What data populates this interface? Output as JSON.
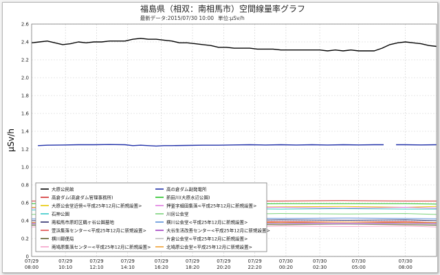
{
  "chart_data": {
    "type": "line",
    "title": "福島県（相双：南相馬市）空間線量率グラフ",
    "subtitle_latest": "最新データ:2015/07/30 10:00",
    "subtitle_unit": "単位:μSv/h",
    "ylabel": "μSv/h",
    "xlabel": "",
    "ylim": [
      0,
      2.6
    ],
    "y_ticks": [
      0,
      0.2,
      0.4,
      0.6,
      0.8,
      1.0,
      1.2,
      1.4,
      1.6,
      1.8,
      2.0,
      2.2,
      2.4,
      2.6
    ],
    "y_tick_labels": [
      "0",
      "0.2",
      "0.4",
      "0.6",
      "0.8",
      "1.0",
      "1.2",
      "1.4",
      "1.6",
      "1.8",
      "2.0",
      "2.2",
      "2.4",
      "2.6"
    ],
    "x_range": [
      0,
      26
    ],
    "x_ticks": [
      {
        "x": 0,
        "date": "07/29",
        "time": "08:00"
      },
      {
        "x": 2.17,
        "date": "07/29",
        "time": "10:10"
      },
      {
        "x": 4.17,
        "date": "07/29",
        "time": "12:10"
      },
      {
        "x": 6.17,
        "date": "07/29",
        "time": "14:10"
      },
      {
        "x": 8.33,
        "date": "07/29",
        "time": "16:20"
      },
      {
        "x": 10.33,
        "date": "07/29",
        "time": "18:20"
      },
      {
        "x": 12.33,
        "date": "07/29",
        "time": "20:20"
      },
      {
        "x": 14.33,
        "date": "07/29",
        "time": "22:20"
      },
      {
        "x": 16.33,
        "date": "07/30",
        "time": "00:20"
      },
      {
        "x": 18.5,
        "date": "07/30",
        "time": "02:30"
      },
      {
        "x": 21.0,
        "date": "07/30",
        "time": "05:00"
      },
      {
        "x": 24.0,
        "date": "07/30",
        "time": "08:00"
      }
    ],
    "grid": true,
    "legend_placement": "bottom-left",
    "series": [
      {
        "name": "大原公民館",
        "color": "#000000",
        "width": 1.4,
        "points": [
          [
            0,
            2.39
          ],
          [
            0.5,
            2.4
          ],
          [
            1,
            2.41
          ],
          [
            1.5,
            2.39
          ],
          [
            2,
            2.37
          ],
          [
            2.5,
            2.38
          ],
          [
            3,
            2.4
          ],
          [
            3.5,
            2.39
          ],
          [
            4,
            2.4
          ],
          [
            4.5,
            2.4
          ],
          [
            5,
            2.41
          ],
          [
            5.5,
            2.41
          ],
          [
            6,
            2.41
          ],
          [
            6.5,
            2.43
          ],
          [
            7,
            2.44
          ],
          [
            7.5,
            2.43
          ],
          [
            8,
            2.43
          ],
          [
            8.5,
            2.42
          ],
          [
            9,
            2.41
          ],
          [
            9.5,
            2.39
          ],
          [
            10,
            2.39
          ],
          [
            10.5,
            2.38
          ],
          [
            11,
            2.37
          ],
          [
            11.5,
            2.36
          ],
          [
            12,
            2.34
          ],
          [
            12.5,
            2.34
          ],
          [
            13,
            2.33
          ],
          [
            13.5,
            2.33
          ],
          [
            14,
            2.33
          ],
          [
            14.5,
            2.32
          ],
          [
            15,
            2.32
          ],
          [
            15.5,
            2.32
          ],
          [
            16,
            2.31
          ],
          [
            16.5,
            2.31
          ],
          [
            17,
            2.31
          ],
          [
            17.5,
            2.31
          ],
          [
            18,
            2.31
          ],
          [
            18.5,
            2.31
          ],
          [
            19,
            2.3
          ],
          [
            19.5,
            2.31
          ],
          [
            20,
            2.3
          ],
          [
            20.5,
            2.31
          ],
          [
            21,
            2.3
          ],
          [
            21.5,
            2.3
          ],
          [
            22,
            2.3
          ],
          [
            22.5,
            2.33
          ],
          [
            23,
            2.37
          ],
          [
            23.5,
            2.39
          ],
          [
            24,
            2.4
          ],
          [
            24.5,
            2.39
          ],
          [
            25,
            2.38
          ],
          [
            25.5,
            2.36
          ],
          [
            26,
            2.35
          ]
        ]
      },
      {
        "name": "高の倉ダム副発電所",
        "color": "#1f2fa8",
        "width": 1.4,
        "points": [
          [
            0.4,
            1.24
          ],
          [
            1,
            1.245
          ],
          [
            2,
            1.247
          ],
          [
            3,
            1.25
          ],
          [
            4,
            1.25
          ],
          [
            5,
            1.252
          ],
          [
            6,
            1.25
          ],
          [
            6.5,
            1.24
          ],
          [
            7,
            1.245
          ],
          [
            7.5,
            1.24
          ],
          [
            8,
            1.235
          ],
          [
            8.5,
            1.24
          ],
          [
            9,
            1.24
          ],
          [
            10,
            1.242
          ],
          [
            11,
            1.245
          ],
          [
            12,
            1.245
          ],
          [
            13,
            1.248
          ],
          [
            14,
            1.25
          ],
          [
            15,
            1.247
          ],
          [
            16,
            1.25
          ],
          [
            17,
            1.247
          ],
          [
            18,
            1.25
          ],
          [
            19,
            1.247
          ],
          [
            20,
            1.25
          ],
          [
            21,
            1.248
          ],
          [
            22,
            1.25
          ],
          [
            22.6,
            1.25
          ],
          null,
          [
            23.4,
            1.25
          ],
          [
            24,
            1.25
          ],
          [
            25,
            1.248
          ],
          [
            26,
            1.25
          ]
        ]
      },
      {
        "name": "高倉ダム(高倉ダム管理事務所)",
        "color": "#d12a2a",
        "width": 1.0,
        "points": [
          [
            0,
            0.62
          ],
          [
            4,
            0.625
          ],
          [
            8,
            0.615
          ],
          [
            12,
            0.62
          ],
          [
            16,
            0.62
          ],
          [
            20,
            0.625
          ],
          [
            24,
            0.62
          ],
          [
            26,
            0.62
          ]
        ]
      },
      {
        "name": "新田川(大原水辺公園)",
        "color": "#22c222",
        "width": 1.0,
        "points": [
          [
            0,
            0.59
          ],
          [
            4,
            0.595
          ],
          [
            8,
            0.59
          ],
          [
            12,
            0.585
          ],
          [
            16,
            0.59
          ],
          [
            20,
            0.59
          ],
          [
            24,
            0.59
          ],
          [
            26,
            0.585
          ]
        ]
      },
      {
        "name": "大原公会堂近傍<平成25年12月に新規設置>",
        "color": "#e8c800",
        "width": 1.0,
        "points": [
          [
            0,
            0.55
          ],
          [
            4,
            0.56
          ],
          [
            8,
            0.545
          ],
          [
            12,
            0.55
          ],
          [
            16,
            0.555
          ],
          [
            20,
            0.56
          ],
          [
            24,
            0.55
          ],
          [
            26,
            0.56
          ]
        ]
      },
      {
        "name": "押釜字細田集落<平成25年12月に新規設置>",
        "color": "#e07ce0",
        "width": 1.0,
        "points": [
          [
            0,
            0.54
          ],
          [
            4,
            0.55
          ],
          [
            8,
            0.535
          ],
          [
            12,
            0.545
          ],
          [
            16,
            0.55
          ],
          [
            20,
            0.54
          ],
          [
            24,
            0.55
          ],
          [
            26,
            0.54
          ]
        ]
      },
      {
        "name": "石神公園",
        "color": "#33c7c7",
        "width": 1.0,
        "points": [
          [
            0,
            0.52
          ],
          [
            4,
            0.53
          ],
          [
            8,
            0.52
          ],
          [
            12,
            0.535
          ],
          [
            16,
            0.53
          ],
          [
            20,
            0.535
          ],
          [
            24,
            0.53
          ],
          [
            26,
            0.53
          ]
        ]
      },
      {
        "name": "川房公会堂",
        "color": "#7ad27a",
        "width": 1.0,
        "points": [
          [
            0,
            0.47
          ],
          [
            4,
            0.48
          ],
          [
            8,
            0.475
          ],
          [
            12,
            0.47
          ],
          [
            16,
            0.48
          ],
          [
            20,
            0.475
          ],
          [
            24,
            0.48
          ],
          [
            26,
            0.47
          ]
        ]
      },
      {
        "name": "南相馬市原町区鶴ヶ谷公園墓地",
        "color": "#2b2b6b",
        "width": 1.0,
        "points": [
          [
            0,
            0.4
          ],
          [
            4,
            0.405
          ],
          [
            8,
            0.41
          ],
          [
            12,
            0.4
          ],
          [
            16,
            0.41
          ],
          [
            20,
            0.405
          ],
          [
            24,
            0.41
          ],
          [
            26,
            0.4
          ]
        ]
      },
      {
        "name": "横川公会堂<平成25年12月に新規設置>",
        "color": "#5a8fd8",
        "width": 1.0,
        "points": [
          [
            0,
            0.42
          ],
          [
            4,
            0.425
          ],
          [
            8,
            0.42
          ],
          [
            12,
            0.43
          ],
          [
            16,
            0.425
          ],
          [
            20,
            0.43
          ],
          [
            24,
            0.425
          ],
          [
            26,
            0.42
          ]
        ]
      },
      {
        "name": "萱浜集落センター<平成25年12月に新規設置>",
        "color": "#e04a4a",
        "width": 1.0,
        "points": [
          [
            0,
            0.38
          ],
          [
            4,
            0.39
          ],
          [
            8,
            0.385
          ],
          [
            12,
            0.38
          ],
          [
            16,
            0.39
          ],
          [
            20,
            0.385
          ],
          [
            24,
            0.39
          ],
          [
            26,
            0.38
          ]
        ]
      },
      {
        "name": "大谷生活改善センター<平成25年12月に新規設置>",
        "color": "#a03ac0",
        "width": 1.0,
        "points": [
          [
            0,
            0.37
          ],
          [
            4,
            0.375
          ],
          [
            8,
            0.37
          ],
          [
            12,
            0.38
          ],
          [
            16,
            0.375
          ],
          [
            20,
            0.37
          ],
          [
            24,
            0.375
          ],
          [
            26,
            0.37
          ]
        ]
      },
      {
        "name": "横川郵便局",
        "color": "#5e5e2a",
        "width": 1.0,
        "points": [
          [
            0,
            0.35
          ],
          [
            4,
            0.355
          ],
          [
            8,
            0.35
          ],
          [
            12,
            0.36
          ],
          [
            16,
            0.355
          ],
          [
            20,
            0.36
          ],
          [
            24,
            0.355
          ],
          [
            26,
            0.35
          ]
        ]
      },
      {
        "name": "片倉公会堂<平成25年12月に新規設置>",
        "color": "#c0c0c0",
        "width": 1.0,
        "points": [
          [
            0,
            0.36
          ],
          [
            4,
            0.365
          ],
          [
            8,
            0.36
          ],
          [
            12,
            0.37
          ],
          [
            16,
            0.365
          ],
          [
            20,
            0.36
          ],
          [
            24,
            0.365
          ],
          [
            26,
            0.36
          ]
        ]
      },
      {
        "name": "南鳩原集落センター<平成25年12月に新規設置>",
        "color": "#f4a0c8",
        "width": 1.0,
        "points": [
          [
            0,
            0.33
          ],
          [
            4,
            0.34
          ],
          [
            8,
            0.335
          ],
          [
            12,
            0.33
          ],
          [
            16,
            0.34
          ],
          [
            20,
            0.335
          ],
          [
            24,
            0.34
          ],
          [
            26,
            0.33
          ]
        ]
      },
      {
        "name": "北鳩原公会堂<平成25年12月に新規設置>",
        "color": "#f0a030",
        "width": 1.0,
        "points": [
          [
            0,
            0.38
          ],
          [
            4,
            0.385
          ],
          [
            8,
            0.38
          ],
          [
            12,
            0.385
          ],
          [
            16,
            0.38
          ],
          [
            20,
            0.385
          ],
          [
            24,
            0.38
          ],
          [
            26,
            0.38
          ]
        ]
      }
    ],
    "legend": [
      {
        "label": "大原公民館",
        "color": "#000000"
      },
      {
        "label": "高の倉ダム副発電所",
        "color": "#1f2fa8"
      },
      {
        "label": "高倉ダム(高倉ダム管理事務所)",
        "color": "#d12a2a"
      },
      {
        "label": "新田川(大原水辺公園)",
        "color": "#22c222"
      },
      {
        "label": "大原公会堂近傍<平成25年12月に新規設置>",
        "color": "#e8c800"
      },
      {
        "label": "押釜字細田集落<平成25年12月に新規設置>",
        "color": "#e07ce0"
      },
      {
        "label": "石神公園",
        "color": "#33c7c7"
      },
      {
        "label": "川房公会堂",
        "color": "#7ad27a"
      },
      {
        "label": "南相馬市原町区鶴ヶ谷公園墓地",
        "color": "#2b2b6b"
      },
      {
        "label": "横川公会堂<平成25年12月に新規設置>",
        "color": "#5a8fd8"
      },
      {
        "label": "萱浜集落センター<平成25年12月に新規設置>",
        "color": "#e04a4a"
      },
      {
        "label": "大谷生活改善センター<平成25年12月に新規設置>",
        "color": "#a03ac0"
      },
      {
        "label": "横川郵便局",
        "color": "#5e5e2a"
      },
      {
        "label": "片倉公会堂<平成25年12月に新規設置>",
        "color": "#c0c0c0"
      },
      {
        "label": "南鳩原集落センター<平成25年12月に新規設置>",
        "color": "#f4a0c8"
      },
      {
        "label": "北鳩原公会堂<平成25年12月に新規設置>",
        "color": "#f0a030"
      }
    ]
  }
}
